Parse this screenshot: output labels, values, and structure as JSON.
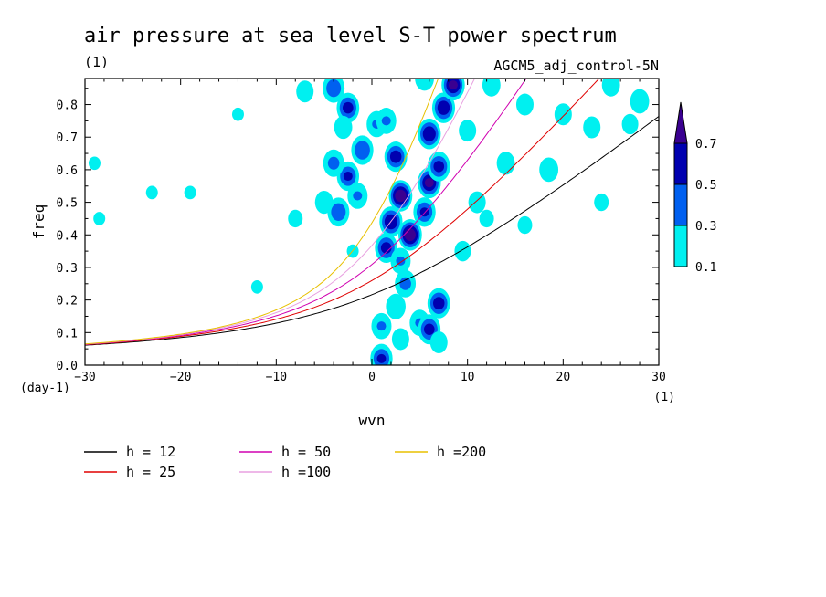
{
  "chart_data": {
    "type": "heatmap",
    "title": "air pressure at sea level S-T power spectrum",
    "units_label": "(1)",
    "run_label": "AGCM5_adj_control-5N",
    "xlabel": "wvn",
    "ylabel": "freq",
    "x_unit": "(1)",
    "y_unit": "(day-1)",
    "xlim": [
      -30,
      30
    ],
    "ylim": [
      0,
      0.88
    ],
    "x_ticks": [
      -30,
      -20,
      -10,
      0,
      10,
      20,
      30
    ],
    "y_ticks": [
      0.0,
      0.1,
      0.2,
      0.3,
      0.4,
      0.5,
      0.6,
      0.7,
      0.8
    ],
    "colorbar": {
      "levels": [
        0.1,
        0.3,
        0.5,
        0.7
      ],
      "colors": [
        "#00f0f0",
        "#0060f0",
        "#0000b0",
        "#3a0090"
      ]
    },
    "power_blobs": [
      {
        "x": -4,
        "y": 0.85,
        "value": 0.45
      },
      {
        "x": -2.5,
        "y": 0.79,
        "value": 0.55
      },
      {
        "x": -7,
        "y": 0.84,
        "value": 0.2
      },
      {
        "x": -3,
        "y": 0.73,
        "value": 0.22
      },
      {
        "x": 0.5,
        "y": 0.74,
        "value": 0.3
      },
      {
        "x": -1,
        "y": 0.66,
        "value": 0.48
      },
      {
        "x": -2.5,
        "y": 0.58,
        "value": 0.5
      },
      {
        "x": -4,
        "y": 0.62,
        "value": 0.35
      },
      {
        "x": -3.5,
        "y": 0.47,
        "value": 0.45
      },
      {
        "x": -5,
        "y": 0.5,
        "value": 0.22
      },
      {
        "x": -1.5,
        "y": 0.52,
        "value": 0.3
      },
      {
        "x": 1.5,
        "y": 0.75,
        "value": 0.3
      },
      {
        "x": 2.5,
        "y": 0.64,
        "value": 0.58
      },
      {
        "x": 3,
        "y": 0.52,
        "value": 0.8
      },
      {
        "x": 2,
        "y": 0.44,
        "value": 0.65
      },
      {
        "x": 4,
        "y": 0.4,
        "value": 0.8
      },
      {
        "x": 1.5,
        "y": 0.36,
        "value": 0.55
      },
      {
        "x": 3,
        "y": 0.32,
        "value": 0.3
      },
      {
        "x": 6,
        "y": 0.56,
        "value": 0.7
      },
      {
        "x": 7,
        "y": 0.61,
        "value": 0.55
      },
      {
        "x": 6,
        "y": 0.71,
        "value": 0.65
      },
      {
        "x": 7.5,
        "y": 0.79,
        "value": 0.62
      },
      {
        "x": 8.5,
        "y": 0.86,
        "value": 0.7
      },
      {
        "x": 5.5,
        "y": 0.47,
        "value": 0.5
      },
      {
        "x": 3.5,
        "y": 0.25,
        "value": 0.35
      },
      {
        "x": 2.5,
        "y": 0.18,
        "value": 0.28
      },
      {
        "x": 1,
        "y": 0.12,
        "value": 0.3
      },
      {
        "x": 1,
        "y": 0.02,
        "value": 0.5
      },
      {
        "x": 3,
        "y": 0.08,
        "value": 0.2
      },
      {
        "x": 5,
        "y": 0.13,
        "value": 0.3
      },
      {
        "x": 6,
        "y": 0.11,
        "value": 0.55
      },
      {
        "x": 7,
        "y": 0.19,
        "value": 0.58
      },
      {
        "x": 7,
        "y": 0.07,
        "value": 0.2
      },
      {
        "x": 10,
        "y": 0.72,
        "value": 0.2
      },
      {
        "x": 11,
        "y": 0.5,
        "value": 0.2
      },
      {
        "x": 14,
        "y": 0.62,
        "value": 0.22
      },
      {
        "x": 16,
        "y": 0.8,
        "value": 0.2
      },
      {
        "x": 18.5,
        "y": 0.6,
        "value": 0.25
      },
      {
        "x": 20,
        "y": 0.77,
        "value": 0.2
      },
      {
        "x": 23,
        "y": 0.73,
        "value": 0.2
      },
      {
        "x": 25,
        "y": 0.86,
        "value": 0.22
      },
      {
        "x": 27,
        "y": 0.74,
        "value": 0.18
      },
      {
        "x": 28,
        "y": 0.81,
        "value": 0.25
      },
      {
        "x": 24,
        "y": 0.5,
        "value": 0.15
      },
      {
        "x": 16,
        "y": 0.43,
        "value": 0.15
      },
      {
        "x": 12,
        "y": 0.45,
        "value": 0.15
      },
      {
        "x": 9.5,
        "y": 0.35,
        "value": 0.18
      },
      {
        "x": -29,
        "y": 0.62,
        "value": 0.12
      },
      {
        "x": -28.5,
        "y": 0.45,
        "value": 0.12
      },
      {
        "x": -23,
        "y": 0.53,
        "value": 0.12
      },
      {
        "x": -19,
        "y": 0.53,
        "value": 0.12
      },
      {
        "x": -14,
        "y": 0.77,
        "value": 0.12
      },
      {
        "x": -8,
        "y": 0.45,
        "value": 0.15
      },
      {
        "x": -12,
        "y": 0.24,
        "value": 0.12
      },
      {
        "x": -2,
        "y": 0.35,
        "value": 0.12
      },
      {
        "x": 5.5,
        "y": 0.88,
        "value": 0.25
      },
      {
        "x": 12.5,
        "y": 0.86,
        "value": 0.22
      }
    ],
    "series": [
      {
        "name": "h = 12",
        "color": "#000000",
        "h": 12
      },
      {
        "name": "h = 25",
        "color": "#e00000",
        "h": 25
      },
      {
        "name": "h = 50",
        "color": "#d000b0",
        "h": 50
      },
      {
        "name": "h =100",
        "color": "#e8a0e0",
        "h": 100
      },
      {
        "name": "h =200",
        "color": "#e8c000",
        "h": 200
      }
    ]
  }
}
